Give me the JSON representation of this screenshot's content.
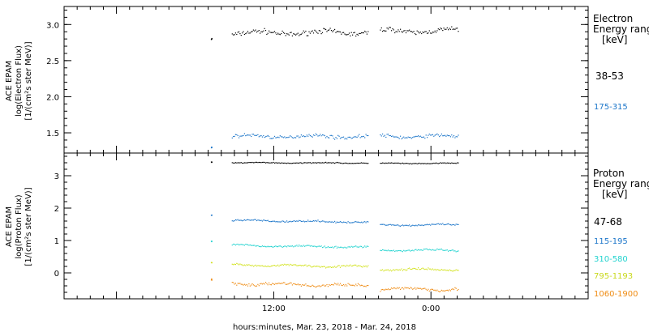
{
  "figure": {
    "xlabel": "hours:minutes, Mar. 23, 2018 - Mar. 24, 2018",
    "xticks": [
      {
        "hours": 12,
        "label": "12:00"
      },
      {
        "hours": 24,
        "label": "0:00"
      }
    ],
    "xlim_hours": [
      -4,
      36
    ]
  },
  "chart_data": [
    {
      "type": "scatter",
      "name": "electron",
      "ylabel": [
        "ACE EPAM",
        "log(Electron Flux)",
        "[1/(cm²s ster MeV)]"
      ],
      "ylim": [
        1.22,
        3.25
      ],
      "yticks": [
        {
          "value": 1.5,
          "label": "1.5"
        },
        {
          "value": 2.0,
          "label": "2.0"
        },
        {
          "value": 2.5,
          "label": "2.5"
        },
        {
          "value": 3.0,
          "label": "3.0"
        }
      ],
      "legend_title": [
        "Electron",
        "Energy ranges",
        "[keV]"
      ],
      "gap_hours": [
        19.2,
        20.1
      ],
      "data_range_hours": [
        7.2,
        26.1
      ],
      "series": [
        {
          "name": "38-53",
          "color": "#000000",
          "start_value": 2.8,
          "typical_value": 2.88,
          "after_gap_value": 2.91,
          "spread": 0.05
        },
        {
          "name": "175-315",
          "color": "#1b75c9",
          "start_value": 1.3,
          "typical_value": 1.45,
          "after_gap_value": 1.45,
          "spread": 0.035
        }
      ]
    },
    {
      "type": "scatter",
      "name": "proton",
      "ylabel": [
        "ACE EPAM",
        "log(Proton Flux)",
        "[1/(cm²s ster MeV)]"
      ],
      "ylim": [
        -0.8,
        3.7
      ],
      "yticks": [
        {
          "value": 0,
          "label": "0"
        },
        {
          "value": 1,
          "label": "1"
        },
        {
          "value": 2,
          "label": "2"
        },
        {
          "value": 3,
          "label": "3"
        }
      ],
      "legend_title": [
        "Proton",
        "Energy ranges",
        "[keV]"
      ],
      "gap_hours": [
        19.2,
        20.1
      ],
      "data_range_hours": [
        7.2,
        26.1
      ],
      "series": [
        {
          "name": "47-68",
          "color": "#000000",
          "start_value": 3.42,
          "typical_value": 3.4,
          "after_gap_value": 3.38,
          "spread": 0.02
        },
        {
          "name": "115-195",
          "color": "#1b75c9",
          "start_value": 1.78,
          "typical_value": 1.62,
          "after_gap_value": 1.48,
          "spread": 0.035
        },
        {
          "name": "310-580",
          "color": "#22d3cf",
          "start_value": 0.98,
          "typical_value": 0.85,
          "after_gap_value": 0.7,
          "spread": 0.04
        },
        {
          "name": "795-1193",
          "color": "#d1e21a",
          "start_value": 0.32,
          "typical_value": 0.25,
          "after_gap_value": 0.1,
          "spread": 0.045
        },
        {
          "name": "1060-1900",
          "color": "#ef8c14",
          "start_value": -0.2,
          "typical_value": -0.33,
          "after_gap_value": -0.5,
          "spread": 0.07
        }
      ]
    }
  ]
}
